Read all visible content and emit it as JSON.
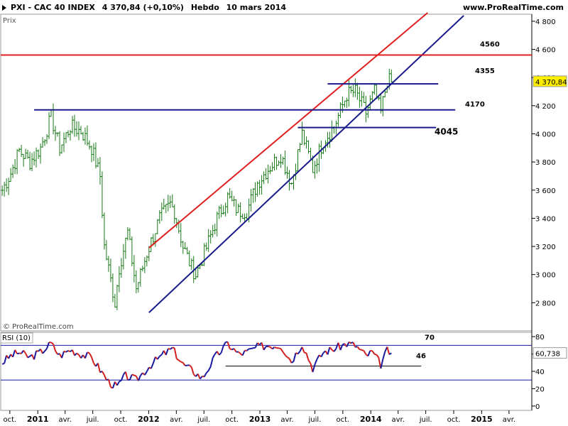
{
  "header": {
    "instrument": "PXI - CAC 40 INDEX",
    "quote": "4 370,84 (+0,10%)",
    "period": "Hebdo",
    "date": "10 mars 2014",
    "website": "www.ProRealTime.com"
  },
  "chart_data": [
    {
      "type": "bar",
      "subtype": "ohlc",
      "panel_label": "Prix",
      "watermark": "© ProRealTime.com",
      "ylim": [
        2600,
        4850
      ],
      "y_ticks": [
        2800,
        3000,
        3200,
        3400,
        3600,
        3800,
        4000,
        4200,
        4400,
        4600,
        4800
      ],
      "y_tick_labels": [
        "2 800",
        "3 000",
        "3 200",
        "3 400",
        "3 600",
        "3 800",
        "4 000",
        "4 200",
        "4 400",
        "4 600",
        "4 800"
      ],
      "last_price_label": "4 370,84",
      "last_price": 4370.84,
      "bar_color": "#1a7a1a",
      "x_range": [
        "2010-09-01",
        "2015-06-15"
      ],
      "close_path": [
        [
          "2010-09-06",
          3600
        ],
        [
          "2010-10-04",
          3720
        ],
        [
          "2010-11-01",
          3880
        ],
        [
          "2010-12-06",
          3800
        ],
        [
          "2011-01-10",
          3900
        ],
        [
          "2011-02-14",
          4120
        ],
        [
          "2011-03-14",
          3900
        ],
        [
          "2011-04-18",
          4050
        ],
        [
          "2011-05-23",
          4020
        ],
        [
          "2011-06-27",
          3900
        ],
        [
          "2011-07-25",
          3700
        ],
        [
          "2011-08-08",
          3200
        ],
        [
          "2011-09-12",
          2800
        ],
        [
          "2011-09-26",
          3050
        ],
        [
          "2011-10-24",
          3300
        ],
        [
          "2011-11-21",
          2900
        ],
        [
          "2011-12-26",
          3150
        ],
        [
          "2012-02-06",
          3400
        ],
        [
          "2012-03-12",
          3500
        ],
        [
          "2012-03-26",
          3450
        ],
        [
          "2012-04-23",
          3200
        ],
        [
          "2012-05-21",
          3050
        ],
        [
          "2012-06-04",
          3000
        ],
        [
          "2012-07-02",
          3150
        ],
        [
          "2012-08-13",
          3400
        ],
        [
          "2012-09-17",
          3550
        ],
        [
          "2012-10-22",
          3450
        ],
        [
          "2012-11-19",
          3450
        ],
        [
          "2012-12-24",
          3650
        ],
        [
          "2013-01-28",
          3750
        ],
        [
          "2013-03-11",
          3850
        ],
        [
          "2013-04-15",
          3650
        ],
        [
          "2013-05-20",
          4000
        ],
        [
          "2013-06-24",
          3750
        ],
        [
          "2013-07-29",
          3950
        ],
        [
          "2013-09-02",
          4050
        ],
        [
          "2013-10-14",
          4280
        ],
        [
          "2013-11-11",
          4300
        ],
        [
          "2013-12-16",
          4150
        ],
        [
          "2014-01-13",
          4300
        ],
        [
          "2014-02-03",
          4150
        ],
        [
          "2014-02-24",
          4380
        ],
        [
          "2014-03-10",
          4370
        ]
      ],
      "horizontal_levels": [
        {
          "label": "4560",
          "value": 4560,
          "color": "#e02020",
          "from": "2010-09-01",
          "to": "2015-06-15"
        },
        {
          "label": "4355",
          "value": 4355,
          "color": "#1a1a8c",
          "from": "2013-08-12",
          "to": "2014-08-11"
        },
        {
          "label": "4170",
          "value": 4170,
          "color": "#1a1a8c",
          "from": "2010-12-20",
          "to": "2014-10-06"
        },
        {
          "label": "4045",
          "value": 4045,
          "color": "#1a1a8c",
          "from": "2013-05-06",
          "to": "2014-08-04"
        }
      ],
      "trend_lines": [
        {
          "color": "#e02020",
          "from": [
            "2012-01-02",
            3190
          ],
          "to": [
            "2014-07-07",
            4860
          ]
        },
        {
          "color": "#1a1a8c",
          "from": [
            "2012-01-02",
            2730
          ],
          "to": [
            "2014-11-03",
            4840
          ]
        }
      ]
    },
    {
      "type": "line",
      "panel_label": "RSI (10)",
      "ylim": [
        -5,
        85
      ],
      "y_ticks": [
        0,
        20,
        40,
        60,
        80
      ],
      "last_value_label": "60,738",
      "last_value": 60.738,
      "line_color_up": "#1a1aa0",
      "line_color_down": "#d02020",
      "levels": [
        {
          "label": "70",
          "value": 70
        },
        {
          "label": "",
          "value": 30
        }
      ],
      "support": {
        "label": "46",
        "value": 46,
        "from": "2012-09-10",
        "to": "2014-06-16"
      },
      "x_range": [
        "2010-09-01",
        "2015-06-15"
      ],
      "values": [
        [
          "2010-09-06",
          50
        ],
        [
          "2010-10-04",
          58
        ],
        [
          "2010-11-01",
          62
        ],
        [
          "2010-12-06",
          56
        ],
        [
          "2011-01-10",
          62
        ],
        [
          "2011-02-14",
          72
        ],
        [
          "2011-03-14",
          58
        ],
        [
          "2011-04-18",
          65
        ],
        [
          "2011-05-23",
          60
        ],
        [
          "2011-06-27",
          56
        ],
        [
          "2011-07-25",
          42
        ],
        [
          "2011-08-22",
          28
        ],
        [
          "2011-09-19",
          22
        ],
        [
          "2011-10-17",
          35
        ],
        [
          "2011-11-21",
          30
        ],
        [
          "2012-01-09",
          48
        ],
        [
          "2012-02-20",
          60
        ],
        [
          "2012-03-19",
          66
        ],
        [
          "2012-04-23",
          48
        ],
        [
          "2012-05-28",
          40
        ],
        [
          "2012-06-25",
          32
        ],
        [
          "2012-08-06",
          56
        ],
        [
          "2012-09-17",
          72
        ],
        [
          "2012-10-22",
          60
        ],
        [
          "2012-11-19",
          62
        ],
        [
          "2012-12-24",
          68
        ],
        [
          "2013-01-28",
          70
        ],
        [
          "2013-03-11",
          70
        ],
        [
          "2013-04-15",
          52
        ],
        [
          "2013-05-20",
          72
        ],
        [
          "2013-06-24",
          44
        ],
        [
          "2013-07-29",
          62
        ],
        [
          "2013-09-02",
          66
        ],
        [
          "2013-10-14",
          72
        ],
        [
          "2013-11-11",
          70
        ],
        [
          "2013-12-16",
          58
        ],
        [
          "2014-01-06",
          62
        ],
        [
          "2014-02-03",
          48
        ],
        [
          "2014-02-24",
          64
        ],
        [
          "2014-03-10",
          61
        ]
      ]
    }
  ],
  "x_axis": {
    "ticks": [
      {
        "date": "2010-10-01",
        "label": "oct.",
        "year": false
      },
      {
        "date": "2011-01-01",
        "label": "2011",
        "year": true
      },
      {
        "date": "2011-04-01",
        "label": "avr.",
        "year": false
      },
      {
        "date": "2011-07-01",
        "label": "juil.",
        "year": false
      },
      {
        "date": "2011-10-01",
        "label": "oct.",
        "year": false
      },
      {
        "date": "2012-01-01",
        "label": "2012",
        "year": true
      },
      {
        "date": "2012-04-01",
        "label": "avr.",
        "year": false
      },
      {
        "date": "2012-07-01",
        "label": "juil.",
        "year": false
      },
      {
        "date": "2012-10-01",
        "label": "oct.",
        "year": false
      },
      {
        "date": "2013-01-01",
        "label": "2013",
        "year": true
      },
      {
        "date": "2013-04-01",
        "label": "avr.",
        "year": false
      },
      {
        "date": "2013-07-01",
        "label": "juil.",
        "year": false
      },
      {
        "date": "2013-10-01",
        "label": "oct.",
        "year": false
      },
      {
        "date": "2014-01-01",
        "label": "2014",
        "year": true
      },
      {
        "date": "2014-04-01",
        "label": "avr.",
        "year": false
      },
      {
        "date": "2014-07-01",
        "label": "juil.",
        "year": false
      },
      {
        "date": "2014-10-01",
        "label": "oct.",
        "year": false
      },
      {
        "date": "2015-01-01",
        "label": "2015",
        "year": true
      },
      {
        "date": "2015-04-01",
        "label": "avr.",
        "year": false
      }
    ]
  }
}
